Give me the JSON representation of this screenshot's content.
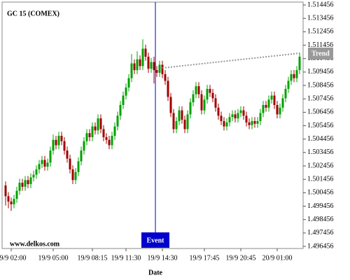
{
  "chart_data": {
    "type": "candlestick",
    "title": "GC 15 (COMEX)",
    "watermark": "www.delkos.com",
    "x_label": "Date",
    "up_color": "#00a000",
    "down_color": "#a00000",
    "ylim": [
      1.4963,
      1.51467
    ],
    "yticks": [
      1.496456,
      1.497456,
      1.498456,
      1.499456,
      1.500456,
      1.501456,
      1.502456,
      1.503456,
      1.504456,
      1.505456,
      1.506456,
      1.507456,
      1.508456,
      1.509456,
      1.510456,
      1.511456,
      1.512456,
      1.513456,
      1.514456
    ],
    "categories": [
      null,
      null,
      "19/9 02:00",
      null,
      null,
      null,
      null,
      null,
      null,
      null,
      null,
      null,
      null,
      null,
      null,
      null,
      null,
      "19/9 05:00",
      null,
      null,
      null,
      null,
      null,
      null,
      null,
      null,
      null,
      null,
      null,
      null,
      null,
      "19/9 08:15",
      null,
      null,
      null,
      null,
      null,
      null,
      null,
      null,
      null,
      null,
      null,
      "19/9 11:30",
      null,
      null,
      null,
      null,
      null,
      null,
      null,
      null,
      null,
      null,
      null,
      null,
      "19/9 14:30",
      null,
      null,
      null,
      null,
      null,
      null,
      null,
      null,
      null,
      null,
      null,
      null,
      null,
      null,
      "19/9 17:45",
      null,
      null,
      null,
      null,
      null,
      null,
      null,
      null,
      null,
      null,
      null,
      null,
      "19/9 20:45",
      null,
      null,
      null,
      null,
      null,
      null,
      null,
      null,
      null,
      null,
      null,
      null,
      "20/9 01:00",
      null,
      null,
      null,
      null,
      null,
      null,
      null,
      null
    ],
    "open": [
      1.501,
      1.5002,
      1.4998,
      1.4996,
      1.5,
      1.5006,
      1.5012,
      1.5009,
      1.5014,
      1.5011,
      1.5016,
      1.5018,
      1.5022,
      1.5026,
      1.5029,
      1.5024,
      1.5027,
      1.5036,
      1.5044,
      1.504,
      1.5047,
      1.5043,
      1.5036,
      1.503,
      1.5022,
      1.5014,
      1.502,
      1.5028,
      1.5036,
      1.5043,
      1.5049,
      1.5046,
      1.5054,
      1.5051,
      1.506,
      1.5052,
      1.5046,
      1.5044,
      1.504,
      1.5047,
      1.5054,
      1.5062,
      1.507,
      1.5077,
      1.5083,
      1.509,
      1.5101,
      1.5096,
      1.5104,
      1.5099,
      1.5112,
      1.5106,
      1.5097,
      1.5102,
      1.5096,
      1.5094,
      1.51,
      1.5093,
      1.5088,
      1.5076,
      1.5064,
      1.5052,
      1.5058,
      1.5066,
      1.5059,
      1.5052,
      1.5063,
      1.5072,
      1.5078,
      1.5084,
      1.5078,
      1.5066,
      1.5074,
      1.5082,
      1.5079,
      1.5075,
      1.5068,
      1.5062,
      1.5058,
      1.5054,
      1.5057,
      1.5061,
      1.5063,
      1.506,
      1.5064,
      1.5066,
      1.5062,
      1.5057,
      1.5055,
      1.5058,
      1.5056,
      1.5058,
      1.5064,
      1.507,
      1.5068,
      1.5074,
      1.5077,
      1.507,
      1.5063,
      1.5068,
      1.5075,
      1.5082,
      1.5088,
      1.5093,
      1.509,
      1.5096
    ],
    "high": [
      1.5013,
      1.5005,
      1.5001,
      1.5003,
      1.5009,
      1.5015,
      1.5015,
      1.5017,
      1.5017,
      1.5019,
      1.5021,
      1.5025,
      1.5029,
      1.5032,
      1.5032,
      1.503,
      1.5039,
      1.5048,
      1.5047,
      1.505,
      1.505,
      1.5046,
      1.5039,
      1.5033,
      1.5025,
      1.5023,
      1.5031,
      1.5039,
      1.5046,
      1.5052,
      1.5052,
      1.5057,
      1.5057,
      1.5063,
      1.5063,
      1.5055,
      1.5049,
      1.5047,
      1.505,
      1.5057,
      1.5065,
      1.5073,
      1.508,
      1.5086,
      1.5093,
      1.5108,
      1.5104,
      1.511,
      1.5107,
      1.5119,
      1.5115,
      1.5109,
      1.5105,
      1.5106,
      1.5099,
      1.5103,
      1.5103,
      1.5096,
      1.5091,
      1.5079,
      1.5067,
      1.5061,
      1.5069,
      1.5069,
      1.5062,
      1.5066,
      1.5075,
      1.5081,
      1.5087,
      1.5087,
      1.5081,
      1.5077,
      1.5085,
      1.5085,
      1.5082,
      1.5078,
      1.5071,
      1.5065,
      1.5061,
      1.506,
      1.5064,
      1.5066,
      1.5066,
      1.5067,
      1.5069,
      1.5069,
      1.5065,
      1.506,
      1.5061,
      1.5061,
      1.5061,
      1.5067,
      1.5073,
      1.5073,
      1.5077,
      1.508,
      1.508,
      1.5073,
      1.5071,
      1.5078,
      1.5085,
      1.5091,
      1.5096,
      1.5096,
      1.5099,
      1.5109
    ],
    "low": [
      1.4995,
      1.4993,
      1.4991,
      1.4993,
      1.4997,
      1.5003,
      1.5006,
      1.5006,
      1.5008,
      1.5008,
      1.5013,
      1.5015,
      1.5019,
      1.5023,
      1.5021,
      1.5021,
      1.5024,
      1.5033,
      1.5037,
      1.5037,
      1.504,
      1.5033,
      1.5027,
      1.5019,
      1.5011,
      1.5011,
      1.5017,
      1.5025,
      1.5033,
      1.504,
      1.5043,
      1.5043,
      1.5048,
      1.5048,
      1.5049,
      1.5043,
      1.5041,
      1.5037,
      1.5037,
      1.5044,
      1.5051,
      1.5059,
      1.5067,
      1.5074,
      1.508,
      1.5087,
      1.5093,
      1.5093,
      1.5096,
      1.5096,
      1.5103,
      1.5094,
      1.5094,
      1.5086,
      1.5091,
      1.5091,
      1.509,
      1.5085,
      1.5073,
      1.5061,
      1.5049,
      1.5049,
      1.5055,
      1.5056,
      1.5049,
      1.5049,
      1.506,
      1.5069,
      1.5075,
      1.5075,
      1.5063,
      1.5063,
      1.5071,
      1.5076,
      1.5072,
      1.5065,
      1.5059,
      1.5055,
      1.5051,
      1.5051,
      1.5054,
      1.5058,
      1.5057,
      1.5057,
      1.5061,
      1.5059,
      1.5054,
      1.5052,
      1.5052,
      1.5053,
      1.5053,
      1.5055,
      1.5061,
      1.5065,
      1.5065,
      1.5071,
      1.5067,
      1.506,
      1.506,
      1.5065,
      1.5072,
      1.5079,
      1.5085,
      1.5087,
      1.5087,
      1.5093
    ],
    "close": [
      1.5002,
      1.4998,
      1.4996,
      1.5,
      1.5006,
      1.5012,
      1.5009,
      1.5014,
      1.5011,
      1.5016,
      1.5018,
      1.5022,
      1.5026,
      1.5029,
      1.5024,
      1.5027,
      1.5036,
      1.5044,
      1.504,
      1.5047,
      1.5043,
      1.5036,
      1.503,
      1.5022,
      1.5014,
      1.502,
      1.5028,
      1.5036,
      1.5043,
      1.5049,
      1.5046,
      1.5054,
      1.5051,
      1.506,
      1.5052,
      1.5046,
      1.5044,
      1.504,
      1.5047,
      1.5054,
      1.5062,
      1.507,
      1.5077,
      1.5083,
      1.509,
      1.5101,
      1.5096,
      1.5104,
      1.5099,
      1.5112,
      1.5106,
      1.5097,
      1.5102,
      1.5096,
      1.5094,
      1.51,
      1.5093,
      1.5088,
      1.5076,
      1.5064,
      1.5052,
      1.5058,
      1.5066,
      1.5059,
      1.5052,
      1.5063,
      1.5072,
      1.5078,
      1.5084,
      1.5078,
      1.5066,
      1.5074,
      1.5082,
      1.5079,
      1.5075,
      1.5068,
      1.5062,
      1.5058,
      1.5054,
      1.5057,
      1.5061,
      1.5063,
      1.506,
      1.5064,
      1.5066,
      1.5062,
      1.5057,
      1.5055,
      1.5058,
      1.5056,
      1.5058,
      1.5064,
      1.507,
      1.5068,
      1.5074,
      1.5077,
      1.507,
      1.5063,
      1.5068,
      1.5075,
      1.5082,
      1.5088,
      1.5093,
      1.509,
      1.5096,
      1.5106
    ],
    "event": {
      "label": "Event",
      "index": 53,
      "color": "#0000cc"
    },
    "trend": {
      "label": "Trend",
      "start_index": 56,
      "start": 1.50976,
      "end_index": 105,
      "end": 1.51086,
      "color": "#999999"
    }
  }
}
